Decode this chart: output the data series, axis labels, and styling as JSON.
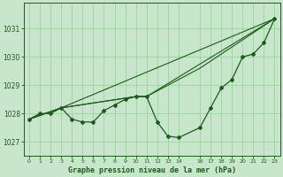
{
  "title": "Graphe pression niveau de la mer (hPa)",
  "background_color": "#c8e6cc",
  "grid_color": "#99cc99",
  "line_color": "#1a5c1a",
  "marker_color": "#1a5c1a",
  "xlim": [
    -0.5,
    23.5
  ],
  "ylim": [
    1026.5,
    1031.9
  ],
  "yticks": [
    1027,
    1028,
    1029,
    1030,
    1031
  ],
  "xticks": [
    0,
    1,
    2,
    3,
    4,
    5,
    6,
    7,
    8,
    9,
    10,
    11,
    12,
    13,
    14,
    16,
    17,
    18,
    19,
    20,
    21,
    22,
    23
  ],
  "line1_x": [
    0,
    1,
    2,
    3,
    4,
    5,
    6,
    7,
    8,
    9,
    10,
    11,
    12,
    13,
    14,
    16,
    17,
    18,
    19,
    20,
    21,
    22,
    23
  ],
  "line1_y": [
    1027.8,
    1028.0,
    1028.0,
    1028.2,
    1027.8,
    1027.7,
    1027.7,
    1028.1,
    1028.3,
    1028.5,
    1028.6,
    1028.6,
    1027.7,
    1027.2,
    1027.15,
    1027.5,
    1028.2,
    1028.9,
    1029.2,
    1030.0,
    1030.1,
    1030.5,
    1031.35
  ],
  "line2_x": [
    0,
    3,
    23
  ],
  "line2_y": [
    1027.8,
    1028.2,
    1031.35
  ],
  "line3_x": [
    0,
    3,
    10,
    11,
    23
  ],
  "line3_y": [
    1027.8,
    1028.2,
    1028.6,
    1028.6,
    1031.35
  ],
  "line4_x": [
    0,
    3,
    10,
    11,
    16,
    23
  ],
  "line4_y": [
    1027.8,
    1028.2,
    1028.6,
    1028.6,
    1029.6,
    1031.35
  ]
}
